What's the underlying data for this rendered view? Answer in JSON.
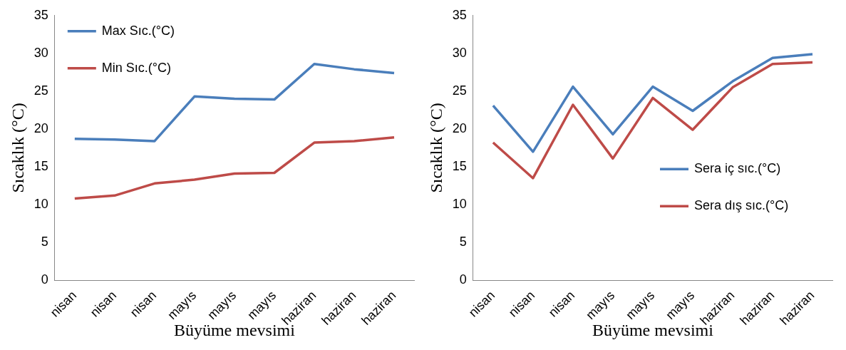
{
  "chart_data": [
    {
      "type": "line",
      "xlabel": "Büyüme mevsimi",
      "ylabel": "Sıcaklık (°C)",
      "categories": [
        "nisan",
        "nisan",
        "nisan",
        "mayıs",
        "mayıs",
        "mayıs",
        "haziran",
        "haziran",
        "haziran"
      ],
      "series": [
        {
          "name": "Max Sıc.(°C)",
          "color": "#4a7ebb",
          "values": [
            18.7,
            18.6,
            18.4,
            24.3,
            24.0,
            23.9,
            28.6,
            27.9,
            27.4
          ]
        },
        {
          "name": "Min Sıc.(°C)",
          "color": "#be4b48",
          "values": [
            10.8,
            11.2,
            12.8,
            13.3,
            14.1,
            14.2,
            18.2,
            18.4,
            18.9
          ]
        }
      ],
      "ylim": [
        0,
        35
      ],
      "yticks": [
        0,
        5,
        10,
        15,
        20,
        25,
        30,
        35
      ],
      "grid": false,
      "legend": "top left",
      "marker": "none"
    },
    {
      "type": "line",
      "xlabel": "Büyüme mevsimi",
      "ylabel": "Sıcaklık (°C)",
      "categories": [
        "nisan",
        "nisan",
        "nisan",
        "mayıs",
        "mayıs",
        "mayıs",
        "haziran",
        "haziran",
        "haziran"
      ],
      "series": [
        {
          "name": "Sera iç sıc.(°C)",
          "color": "#4a7ebb",
          "values": [
            23.1,
            17.0,
            25.6,
            19.3,
            25.6,
            22.4,
            26.3,
            29.4,
            29.9
          ]
        },
        {
          "name": "Sera dış sıc.(°C)",
          "color": "#be4b48",
          "values": [
            18.2,
            13.5,
            23.2,
            16.1,
            24.1,
            19.9,
            25.5,
            28.6,
            28.8
          ]
        }
      ],
      "ylim": [
        0,
        35
      ],
      "yticks": [
        0,
        5,
        10,
        15,
        20,
        25,
        30,
        35
      ],
      "grid": false,
      "legend": "right",
      "marker": "none"
    }
  ]
}
